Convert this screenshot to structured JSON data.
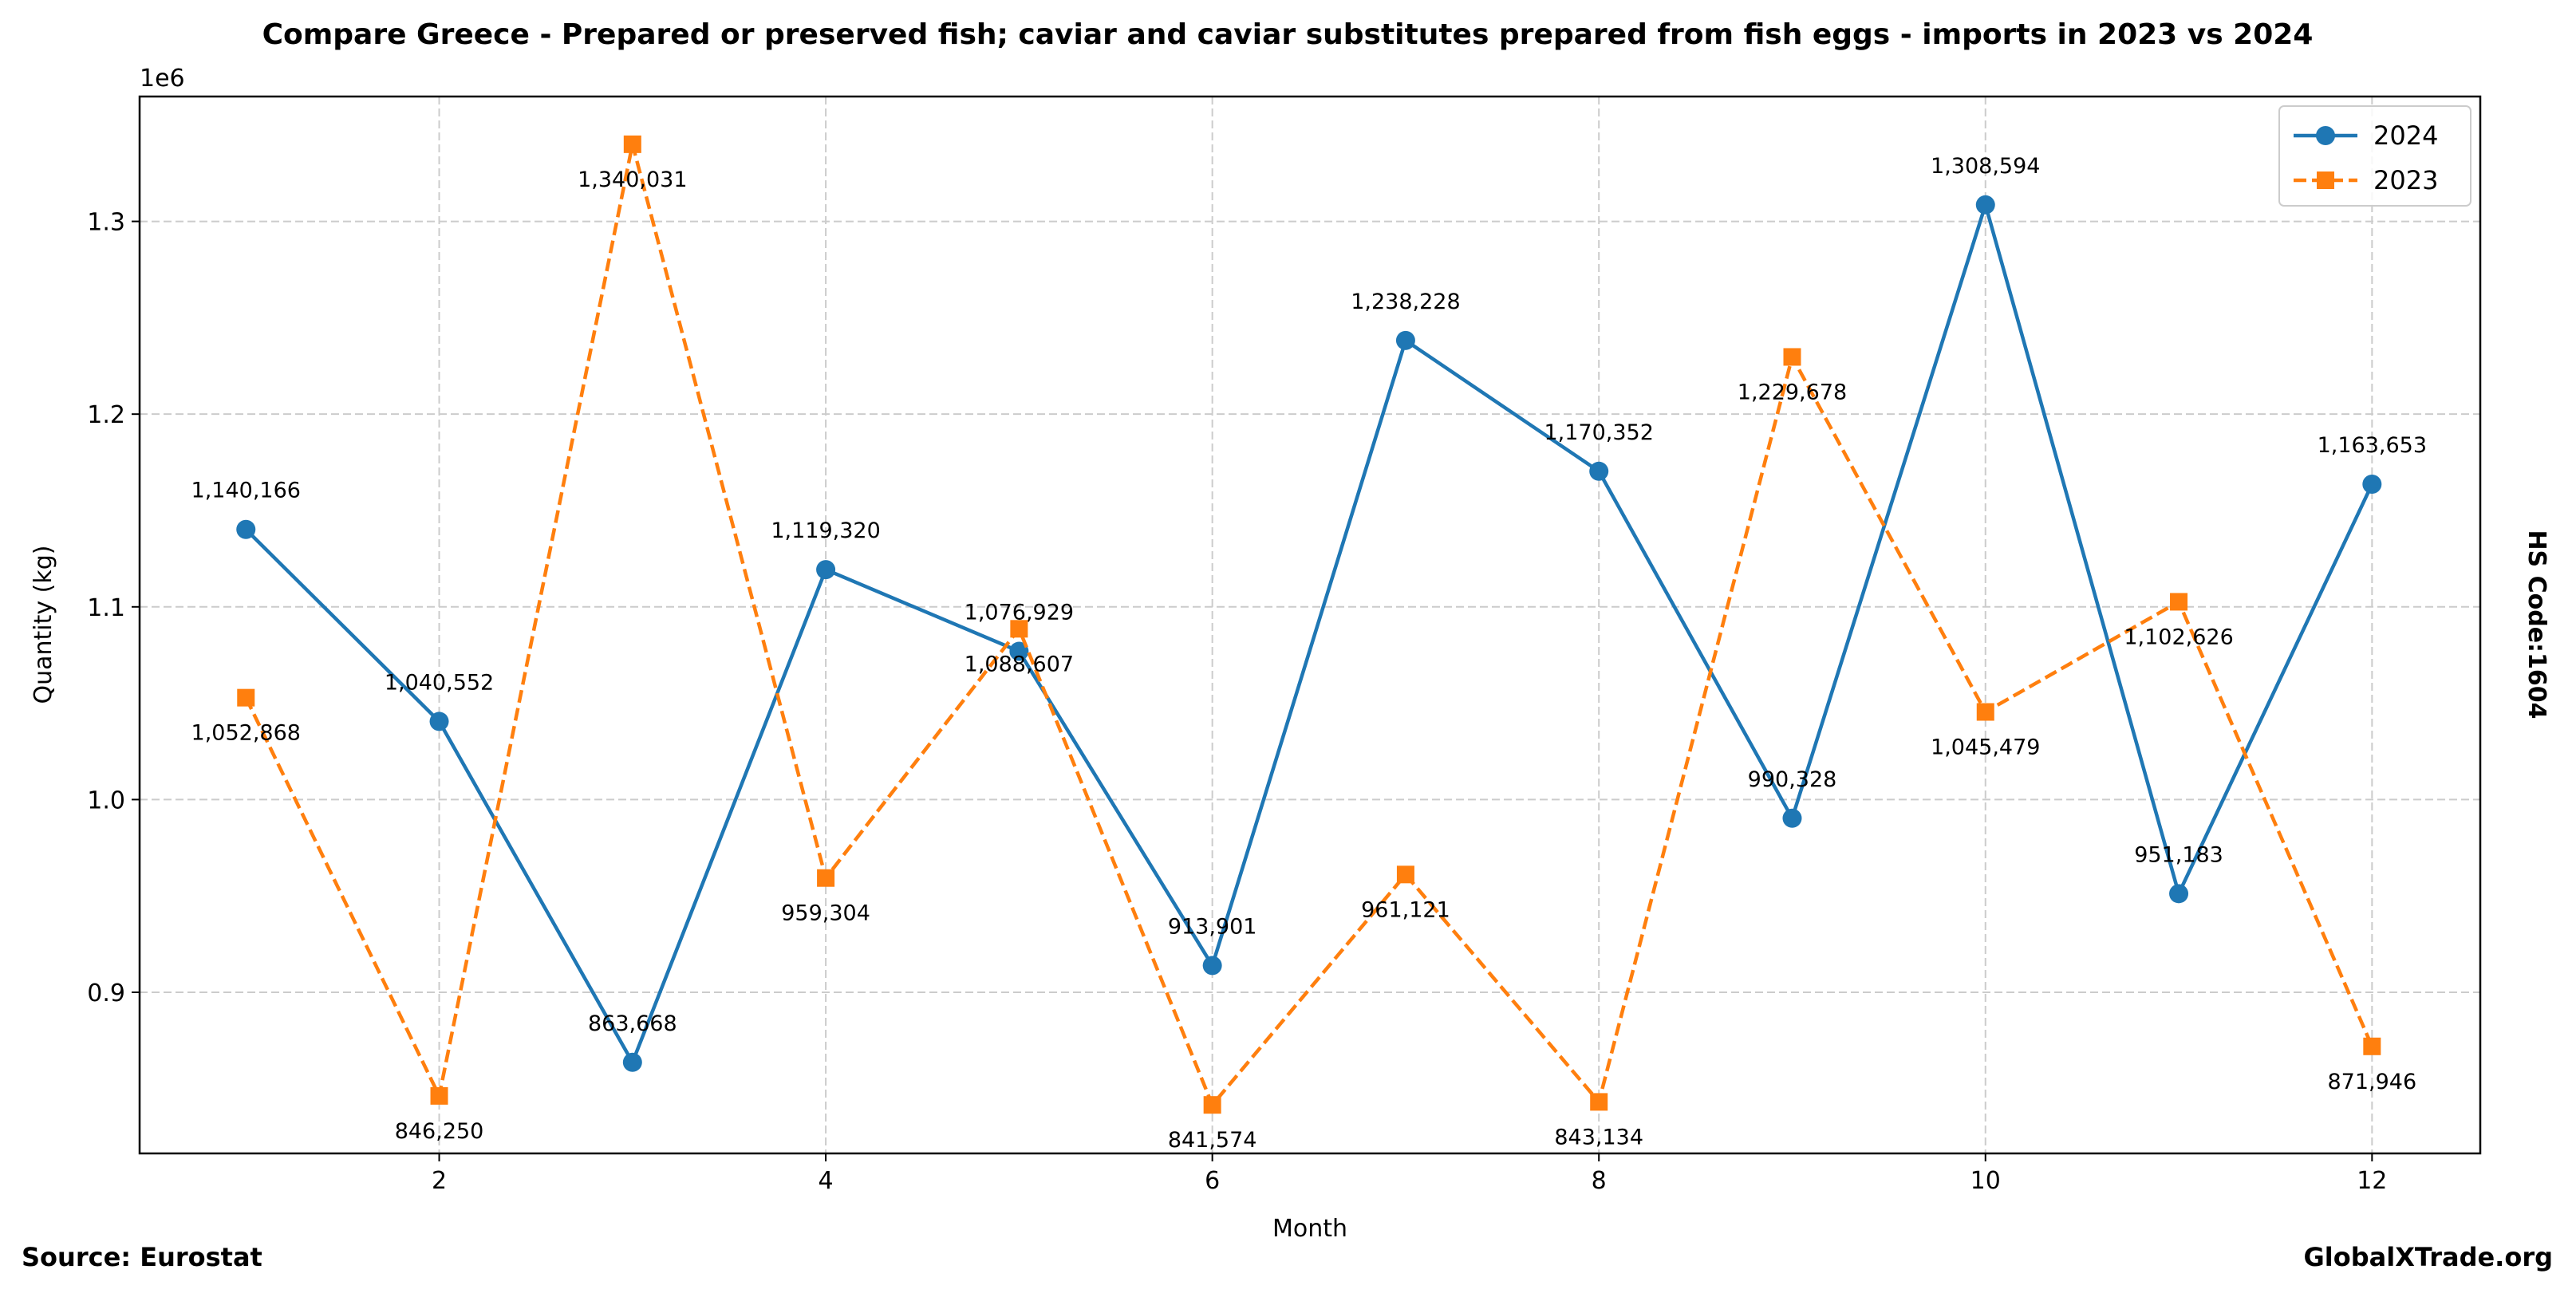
{
  "chart_data": {
    "type": "line",
    "title": "Compare Greece - Prepared or preserved fish; caviar and caviar substitutes prepared from fish eggs - imports in 2023 vs 2024",
    "xlabel": "Month",
    "ylabel": "Quantity (kg)",
    "y_offset_label": "1e6",
    "side_label": "HS Code:1604",
    "source": "Source: Eurostat",
    "watermark": "GlobalXTrade.org",
    "xlim": [
      0.45,
      12.56
    ],
    "ylim": [
      816400,
      1364800
    ],
    "x_ticks": [
      2,
      4,
      6,
      8,
      10,
      12
    ],
    "x_tick_labels": [
      "2",
      "4",
      "6",
      "8",
      "10",
      "12"
    ],
    "y_ticks": [
      900000,
      1000000,
      1100000,
      1200000,
      1300000
    ],
    "y_tick_labels": [
      "0.9",
      "1.0",
      "1.1",
      "1.2",
      "1.3"
    ],
    "grid": true,
    "legend_position": "top-right",
    "x": [
      1,
      2,
      3,
      4,
      5,
      6,
      7,
      8,
      9,
      10,
      11,
      12
    ],
    "series": [
      {
        "name": "2024",
        "color": "#1f77b4",
        "marker": "circle",
        "dash": "solid",
        "values": [
          1140166,
          1040552,
          863668,
          1119320,
          1076929,
          913901,
          1238228,
          1170352,
          990328,
          1308594,
          951183,
          1163653
        ],
        "labels": [
          "1,140,166",
          "1,040,552",
          "863,668",
          "1,119,320",
          "1,076,929",
          "913,901",
          "1,238,228",
          "1,170,352",
          "990,328",
          "1,308,594",
          "951,183",
          "1,163,653"
        ],
        "label_side": "above"
      },
      {
        "name": "2023",
        "color": "#ff7f0e",
        "marker": "square",
        "dash": "dashed",
        "values": [
          1052868,
          846250,
          1340031,
          959304,
          1088607,
          841574,
          961121,
          843134,
          1229678,
          1045479,
          1102626,
          871946
        ],
        "labels": [
          "1,052,868",
          "846,250",
          "1,340,031",
          "959,304",
          "1,088,607",
          "841,574",
          "961,121",
          "843,134",
          "1,229,678",
          "1,045,479",
          "1,102,626",
          "871,946"
        ],
        "label_side": "below"
      }
    ]
  }
}
